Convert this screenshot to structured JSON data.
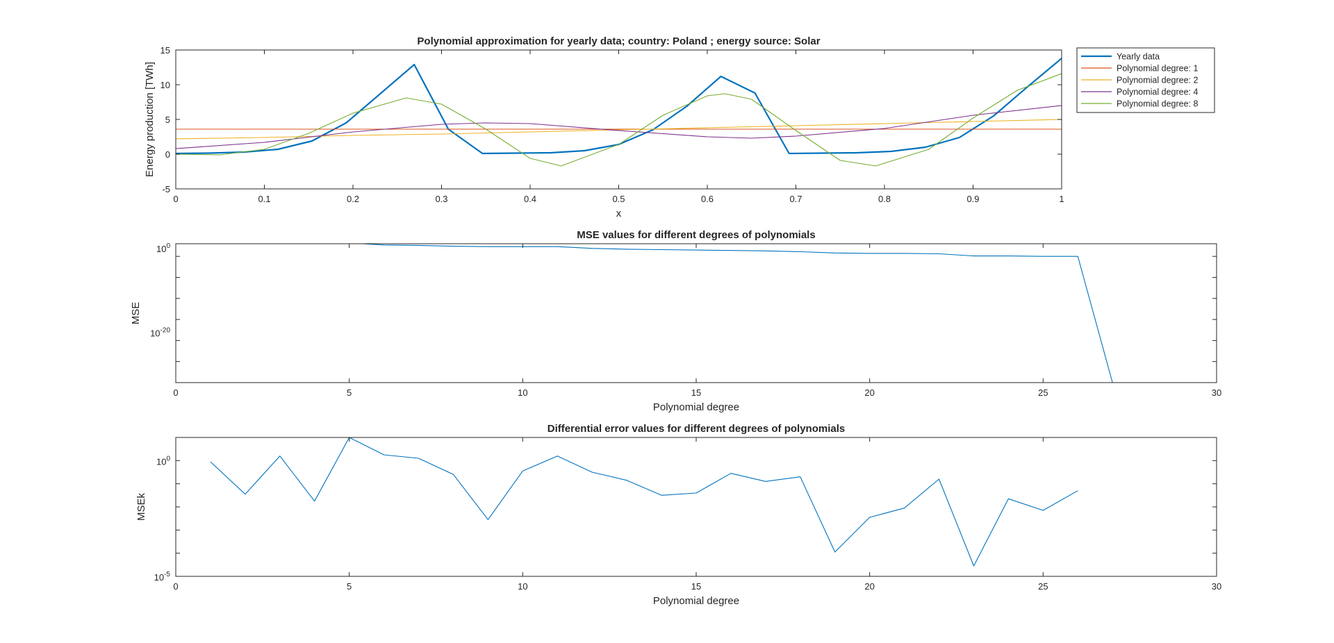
{
  "chart_data": [
    {
      "type": "line",
      "title": "Polynomial approximation for yearly data; country: Poland ; energy source: Solar",
      "xlabel": "x",
      "ylabel": "Energy production [TWh]",
      "xlim": [
        0,
        1
      ],
      "ylim": [
        -5,
        15
      ],
      "xticks": [
        0,
        0.1,
        0.2,
        0.3,
        0.4,
        0.5,
        0.6,
        0.7,
        0.8,
        0.9,
        1
      ],
      "xtick_labels": [
        "0",
        "0.1",
        "0.2",
        "0.3",
        "0.4",
        "0.5",
        "0.6",
        "0.7",
        "0.8",
        "0.9",
        "1"
      ],
      "yticks": [
        -5,
        0,
        5,
        10,
        15
      ],
      "ytick_labels": [
        "-5",
        "0",
        "5",
        "10",
        "15"
      ],
      "legend_position": "outside-top-right",
      "series": [
        {
          "name": "Yearly data",
          "color": "#0072BD",
          "x": [
            0,
            0.0385,
            0.0769,
            0.1154,
            0.1538,
            0.1923,
            0.2308,
            0.2692,
            0.3077,
            0.3462,
            0.3846,
            0.4231,
            0.4615,
            0.5,
            0.5385,
            0.5769,
            0.6154,
            0.6538,
            0.6923,
            0.7308,
            0.7692,
            0.8077,
            0.8462,
            0.8846,
            0.9231,
            0.9615,
            1
          ],
          "y": [
            0.1,
            0.15,
            0.3,
            0.7,
            1.9,
            4.5,
            8.7,
            12.9,
            3.6,
            0.1,
            0.15,
            0.2,
            0.5,
            1.4,
            3.5,
            6.9,
            11.2,
            8.8,
            0.1,
            0.15,
            0.2,
            0.4,
            1.0,
            2.4,
            5.5,
            9.7,
            13.8
          ]
        },
        {
          "name": "Polynomial degree: 1",
          "color": "#D95319",
          "x": [
            0,
            1
          ],
          "y": [
            3.6,
            3.6
          ]
        },
        {
          "name": "Polynomial degree: 2",
          "color": "#EDB120",
          "x": [
            0,
            0.1,
            0.2,
            0.3,
            0.4,
            0.5,
            0.6,
            0.7,
            0.8,
            0.9,
            1
          ],
          "y": [
            2.2,
            2.4,
            2.7,
            2.9,
            3.2,
            3.5,
            3.8,
            4.1,
            4.4,
            4.7,
            5.0
          ]
        },
        {
          "name": "Polynomial degree: 4",
          "color": "#7E2F8E",
          "x": [
            0,
            0.1,
            0.2,
            0.3,
            0.35,
            0.4,
            0.5,
            0.6,
            0.65,
            0.7,
            0.8,
            0.9,
            1
          ],
          "y": [
            0.8,
            1.7,
            3.2,
            4.3,
            4.5,
            4.4,
            3.4,
            2.5,
            2.3,
            2.6,
            3.7,
            5.6,
            7.0
          ]
        },
        {
          "name": "Polynomial degree: 8",
          "color": "#77AC30",
          "x": [
            0,
            0.05,
            0.1,
            0.15,
            0.2,
            0.26,
            0.3,
            0.35,
            0.4,
            0.435,
            0.5,
            0.55,
            0.6,
            0.62,
            0.65,
            0.7,
            0.75,
            0.79,
            0.85,
            0.9,
            0.95,
            1
          ],
          "y": [
            0,
            -0.1,
            0.7,
            3.0,
            5.9,
            8.1,
            7.2,
            3.6,
            -0.6,
            -1.7,
            1.4,
            5.6,
            8.4,
            8.7,
            7.9,
            3.4,
            -0.9,
            -1.7,
            0.7,
            5.2,
            9.2,
            11.6
          ]
        }
      ]
    },
    {
      "type": "line",
      "title": "MSE values for different degrees of polynomials",
      "xlabel": "Polynomial degree",
      "ylabel": "MSE",
      "xlim": [
        0,
        30
      ],
      "yscale": "log",
      "ylim_log10": [
        -32,
        1
      ],
      "xticks": [
        0,
        5,
        10,
        15,
        20,
        25,
        30
      ],
      "xtick_labels": [
        "0",
        "5",
        "10",
        "15",
        "20",
        "25",
        "30"
      ],
      "yticks_log10": [
        0,
        -20
      ],
      "ytick_labels": [
        {
          "base": "10",
          "exp": "0"
        },
        {
          "base": "10",
          "exp": "-20"
        }
      ],
      "series": [
        {
          "color": "#0072BD",
          "x": [
            1,
            2,
            3,
            4,
            5,
            6,
            7,
            8,
            9,
            10,
            11,
            12,
            13,
            14,
            15,
            16,
            17,
            18,
            19,
            20,
            21,
            22,
            23,
            24,
            25,
            26,
            27
          ],
          "log10_y": [
            1.2,
            1.2,
            1.2,
            1.2,
            1.2,
            0.7,
            0.6,
            0.4,
            0.3,
            0.3,
            0.3,
            -0.1,
            -0.3,
            -0.4,
            -0.5,
            -0.6,
            -0.7,
            -0.9,
            -1.2,
            -1.3,
            -1.3,
            -1.4,
            -1.9,
            -1.9,
            -2.0,
            -2.0,
            -32
          ]
        }
      ]
    },
    {
      "type": "line",
      "title": "Differential error values for different degrees of polynomials",
      "xlabel": "Polynomial degree",
      "ylabel": "MSEk",
      "xlim": [
        0,
        30
      ],
      "yscale": "log",
      "ylim_log10": [
        -5,
        1
      ],
      "xticks": [
        0,
        5,
        10,
        15,
        20,
        25,
        30
      ],
      "xtick_labels": [
        "0",
        "5",
        "10",
        "15",
        "20",
        "25",
        "30"
      ],
      "yticks_log10": [
        0,
        -5
      ],
      "ytick_labels": [
        {
          "base": "10",
          "exp": "0"
        },
        {
          "base": "10",
          "exp": "-5"
        }
      ],
      "series": [
        {
          "color": "#0072BD",
          "x": [
            1,
            2,
            3,
            4,
            5,
            6,
            7,
            8,
            9,
            10,
            11,
            12,
            13,
            14,
            15,
            16,
            17,
            18,
            19,
            20,
            21,
            22,
            23,
            24,
            25,
            26
          ],
          "log10_y": [
            -0.05,
            -1.45,
            0.2,
            -1.75,
            1.0,
            0.25,
            0.1,
            -0.6,
            -2.55,
            -0.45,
            0.2,
            -0.5,
            -0.85,
            -1.5,
            -1.4,
            -0.55,
            -0.9,
            -0.7,
            -3.95,
            -2.45,
            -2.05,
            -0.8,
            -4.55,
            -1.65,
            -2.15,
            -1.3
          ]
        }
      ]
    }
  ]
}
